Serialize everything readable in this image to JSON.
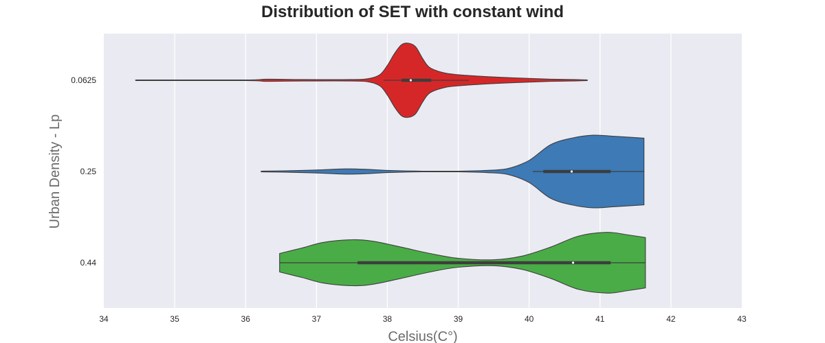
{
  "chart_data": {
    "type": "violin",
    "title": "Distribution of SET with constant wind",
    "xlabel": "Celsius(C°)",
    "ylabel": "Urban Density - Lp",
    "xlim": [
      34,
      43
    ],
    "x_ticks": [
      34,
      35,
      36,
      37,
      38,
      39,
      40,
      41,
      42,
      43
    ],
    "grid": true,
    "categories": [
      "0.0625",
      "0.25",
      "0.44"
    ],
    "series": [
      {
        "category": "0.0625",
        "color": "#d62728",
        "min": 34.45,
        "max": 40.82,
        "q1": 38.2,
        "median": 38.33,
        "q3": 38.62,
        "whisker_low": 37.95,
        "whisker_high": 39.15,
        "density": [
          [
            34.45,
            0.01
          ],
          [
            36.0,
            0.01
          ],
          [
            36.3,
            0.03
          ],
          [
            36.8,
            0.02
          ],
          [
            37.5,
            0.02
          ],
          [
            37.75,
            0.05
          ],
          [
            37.9,
            0.16
          ],
          [
            38.0,
            0.4
          ],
          [
            38.1,
            0.72
          ],
          [
            38.2,
            0.96
          ],
          [
            38.3,
            1.0
          ],
          [
            38.4,
            0.9
          ],
          [
            38.5,
            0.58
          ],
          [
            38.6,
            0.34
          ],
          [
            38.8,
            0.2
          ],
          [
            39.0,
            0.15
          ],
          [
            39.3,
            0.11
          ],
          [
            39.6,
            0.08
          ],
          [
            40.0,
            0.05
          ],
          [
            40.3,
            0.03
          ],
          [
            40.6,
            0.02
          ],
          [
            40.82,
            0.01
          ]
        ]
      },
      {
        "category": "0.25",
        "color": "#3d7ab6",
        "min": 36.22,
        "max": 41.62,
        "q1": 40.2,
        "median": 40.6,
        "q3": 41.15,
        "whisker_low": 40.05,
        "whisker_high": 41.62,
        "density": [
          [
            36.22,
            0.01
          ],
          [
            36.6,
            0.02
          ],
          [
            37.0,
            0.04
          ],
          [
            37.4,
            0.07
          ],
          [
            37.7,
            0.06
          ],
          [
            38.0,
            0.03
          ],
          [
            38.5,
            0.01
          ],
          [
            39.0,
            0.01
          ],
          [
            39.4,
            0.03
          ],
          [
            39.7,
            0.08
          ],
          [
            40.0,
            0.3
          ],
          [
            40.3,
            0.72
          ],
          [
            40.6,
            0.9
          ],
          [
            40.9,
            0.98
          ],
          [
            41.2,
            0.95
          ],
          [
            41.62,
            0.9
          ]
        ]
      },
      {
        "category": "0.44",
        "color": "#4aac47",
        "min": 36.48,
        "max": 41.64,
        "q1": 37.58,
        "median": 40.62,
        "q3": 41.15,
        "whisker_low": 36.48,
        "whisker_high": 41.64,
        "density": [
          [
            36.48,
            0.25
          ],
          [
            36.8,
            0.4
          ],
          [
            37.1,
            0.55
          ],
          [
            37.5,
            0.62
          ],
          [
            37.8,
            0.58
          ],
          [
            38.2,
            0.42
          ],
          [
            38.6,
            0.25
          ],
          [
            39.0,
            0.12
          ],
          [
            39.5,
            0.08
          ],
          [
            39.9,
            0.18
          ],
          [
            40.3,
            0.42
          ],
          [
            40.7,
            0.72
          ],
          [
            41.1,
            0.82
          ],
          [
            41.4,
            0.75
          ],
          [
            41.64,
            0.68
          ]
        ]
      }
    ]
  }
}
